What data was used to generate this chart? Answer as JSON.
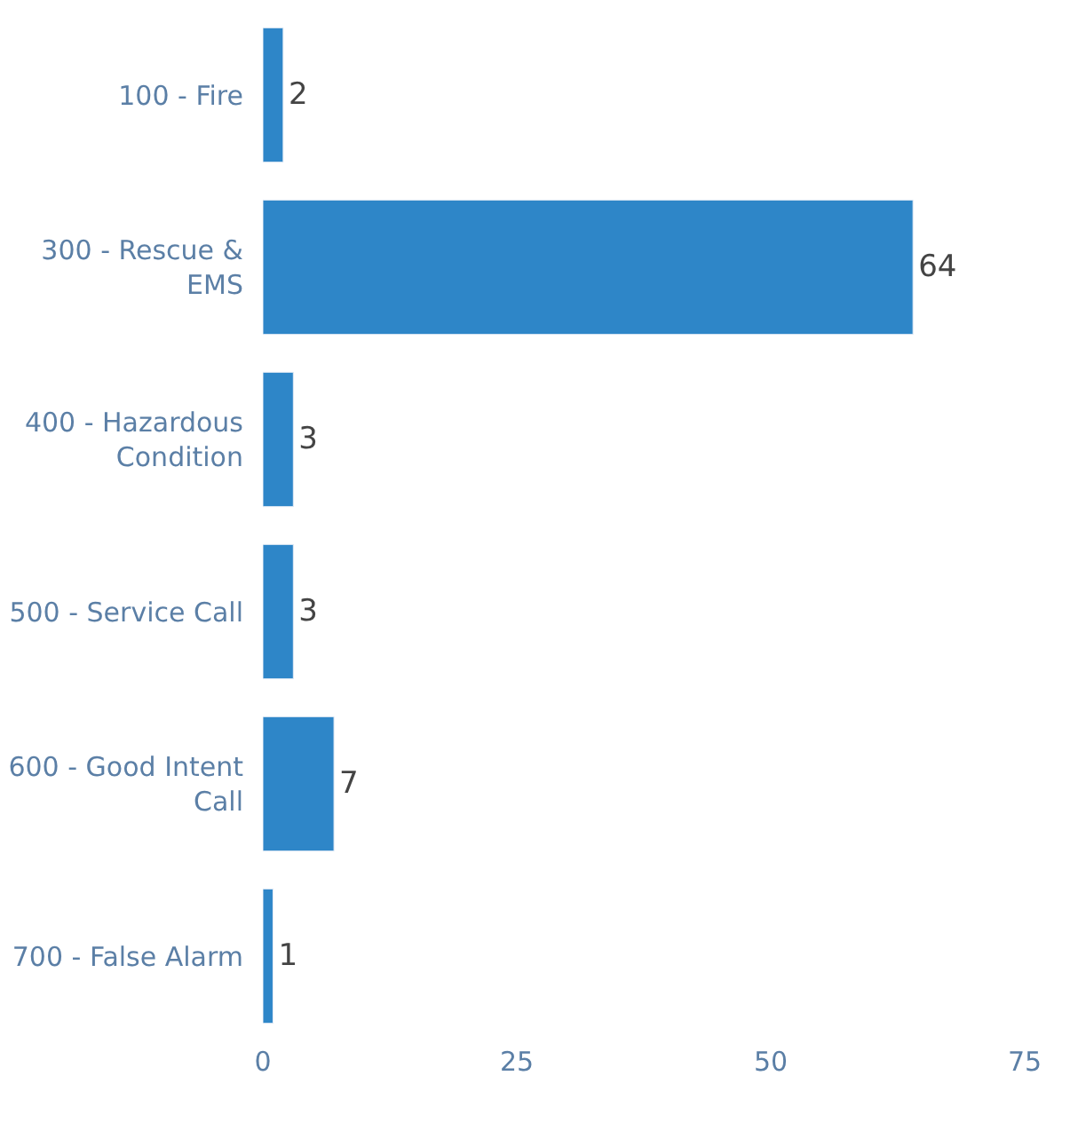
{
  "chart_data": {
    "type": "bar",
    "orientation": "horizontal",
    "categories": [
      "100 - Fire",
      "300 - Rescue &\nEMS",
      "400 - Hazardous\nCondition",
      "500 - Service Call",
      "600 - Good Intent\nCall",
      "700 - False Alarm"
    ],
    "values": [
      2,
      64,
      3,
      3,
      7,
      1
    ],
    "color": "#2e86c8",
    "data_labels": true,
    "xlim": [
      0,
      75
    ],
    "xticks": [
      0,
      25,
      50,
      75
    ]
  }
}
